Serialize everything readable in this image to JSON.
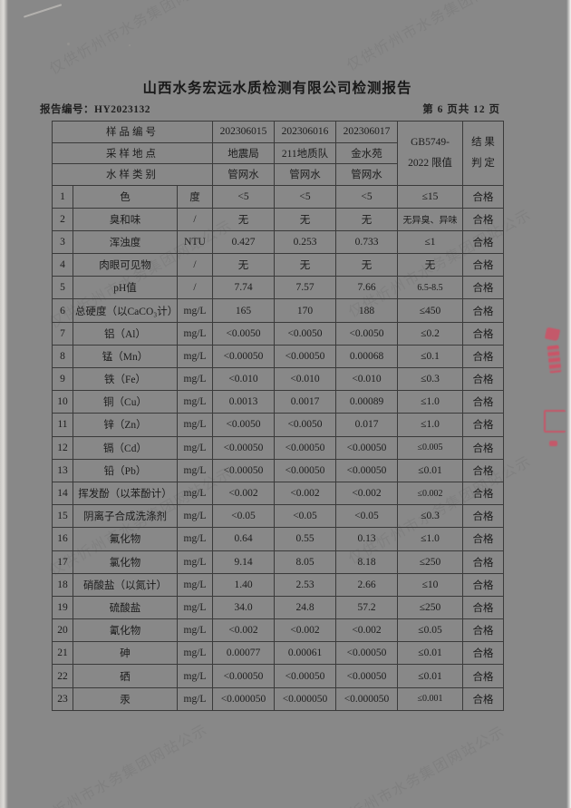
{
  "watermark": {
    "text": "仅供忻州市水务集团网站公示"
  },
  "header": {
    "title": "山西水务宏远水质检测有限公司检测报告",
    "report_no": "报告编号：HY2023132",
    "page_info": "第 6 页共 12 页"
  },
  "table": {
    "meta_rows": {
      "sample_no": {
        "label": "样品编号",
        "v1": "202306015",
        "v2": "202306016",
        "v3": "202306017"
      },
      "location": {
        "label": "采样地点",
        "v1": "地震局",
        "v2": "211地质队",
        "v3": "金水苑"
      },
      "category": {
        "label": "水样类别",
        "v1": "管网水",
        "v2": "管网水",
        "v3": "管网水"
      }
    },
    "limit_header": {
      "line1": "GB5749-",
      "line2": "2022 限值"
    },
    "result_header": {
      "line1": "结 果",
      "line2": "判 定"
    },
    "rows": [
      {
        "no": "1",
        "name": "色",
        "unit": "度",
        "v1": "<5",
        "v2": "<5",
        "v3": "<5",
        "limit": "≤15",
        "result": "合格"
      },
      {
        "no": "2",
        "name": "臭和味",
        "unit": "/",
        "v1": "无",
        "v2": "无",
        "v3": "无",
        "limit": "无异臭、异味",
        "result": "合格"
      },
      {
        "no": "3",
        "name": "浑浊度",
        "unit": "NTU",
        "v1": "0.427",
        "v2": "0.253",
        "v3": "0.733",
        "limit": "≤1",
        "result": "合格"
      },
      {
        "no": "4",
        "name": "肉眼可见物",
        "unit": "/",
        "v1": "无",
        "v2": "无",
        "v3": "无",
        "limit": "无",
        "result": "合格"
      },
      {
        "no": "5",
        "name": "pH值",
        "unit": "/",
        "v1": "7.74",
        "v2": "7.57",
        "v3": "7.66",
        "limit": "6.5-8.5",
        "result": "合格"
      },
      {
        "no": "6",
        "name": "总硬度（以CaCO₃计）",
        "unit": "mg/L",
        "v1": "165",
        "v2": "170",
        "v3": "188",
        "limit": "≤450",
        "result": "合格"
      },
      {
        "no": "7",
        "name": "铝（Al）",
        "unit": "mg/L",
        "v1": "<0.0050",
        "v2": "<0.0050",
        "v3": "<0.0050",
        "limit": "≤0.2",
        "result": "合格"
      },
      {
        "no": "8",
        "name": "锰（Mn）",
        "unit": "mg/L",
        "v1": "<0.00050",
        "v2": "<0.00050",
        "v3": "0.00068",
        "limit": "≤0.1",
        "result": "合格"
      },
      {
        "no": "9",
        "name": "铁（Fe）",
        "unit": "mg/L",
        "v1": "<0.010",
        "v2": "<0.010",
        "v3": "<0.010",
        "limit": "≤0.3",
        "result": "合格"
      },
      {
        "no": "10",
        "name": "铜（Cu）",
        "unit": "mg/L",
        "v1": "0.0013",
        "v2": "0.0017",
        "v3": "0.00089",
        "limit": "≤1.0",
        "result": "合格"
      },
      {
        "no": "11",
        "name": "锌（Zn）",
        "unit": "mg/L",
        "v1": "<0.0050",
        "v2": "<0.0050",
        "v3": "0.017",
        "limit": "≤1.0",
        "result": "合格"
      },
      {
        "no": "12",
        "name": "镉（Cd）",
        "unit": "mg/L",
        "v1": "<0.00050",
        "v2": "<0.00050",
        "v3": "<0.00050",
        "limit": "≤0.005",
        "result": "合格"
      },
      {
        "no": "13",
        "name": "铅（Pb）",
        "unit": "mg/L",
        "v1": "<0.00050",
        "v2": "<0.00050",
        "v3": "<0.00050",
        "limit": "≤0.01",
        "result": "合格"
      },
      {
        "no": "14",
        "name": "挥发酚（以苯酚计）",
        "unit": "mg/L",
        "v1": "<0.002",
        "v2": "<0.002",
        "v3": "<0.002",
        "limit": "≤0.002",
        "result": "合格"
      },
      {
        "no": "15",
        "name": "阴离子合成洗涤剂",
        "unit": "mg/L",
        "v1": "<0.05",
        "v2": "<0.05",
        "v3": "<0.05",
        "limit": "≤0.3",
        "result": "合格"
      },
      {
        "no": "16",
        "name": "氟化物",
        "unit": "mg/L",
        "v1": "0.64",
        "v2": "0.55",
        "v3": "0.13",
        "limit": "≤1.0",
        "result": "合格"
      },
      {
        "no": "17",
        "name": "氯化物",
        "unit": "mg/L",
        "v1": "9.14",
        "v2": "8.05",
        "v3": "8.18",
        "limit": "≤250",
        "result": "合格"
      },
      {
        "no": "18",
        "name": "硝酸盐（以氮计）",
        "unit": "mg/L",
        "v1": "1.40",
        "v2": "2.53",
        "v3": "2.66",
        "limit": "≤10",
        "result": "合格"
      },
      {
        "no": "19",
        "name": "硫酸盐",
        "unit": "mg/L",
        "v1": "34.0",
        "v2": "24.8",
        "v3": "57.2",
        "limit": "≤250",
        "result": "合格"
      },
      {
        "no": "20",
        "name": "氰化物",
        "unit": "mg/L",
        "v1": "<0.002",
        "v2": "<0.002",
        "v3": "<0.002",
        "limit": "≤0.05",
        "result": "合格"
      },
      {
        "no": "21",
        "name": "砷",
        "unit": "mg/L",
        "v1": "0.00077",
        "v2": "0.00061",
        "v3": "<0.00050",
        "limit": "≤0.01",
        "result": "合格"
      },
      {
        "no": "22",
        "name": "硒",
        "unit": "mg/L",
        "v1": "<0.00050",
        "v2": "<0.00050",
        "v3": "<0.00050",
        "limit": "≤0.01",
        "result": "合格"
      },
      {
        "no": "23",
        "name": "汞",
        "unit": "mg/L",
        "v1": "<0.000050",
        "v2": "<0.000050",
        "v3": "<0.000050",
        "limit": "≤0.001",
        "result": "合格"
      }
    ]
  },
  "colors": {
    "paper": "#f2f0ed",
    "ink": "#1c1c1c",
    "border": "#3a3a3a",
    "watermark_gray": "#7a7a7a",
    "seal_red": "#d54c62"
  }
}
